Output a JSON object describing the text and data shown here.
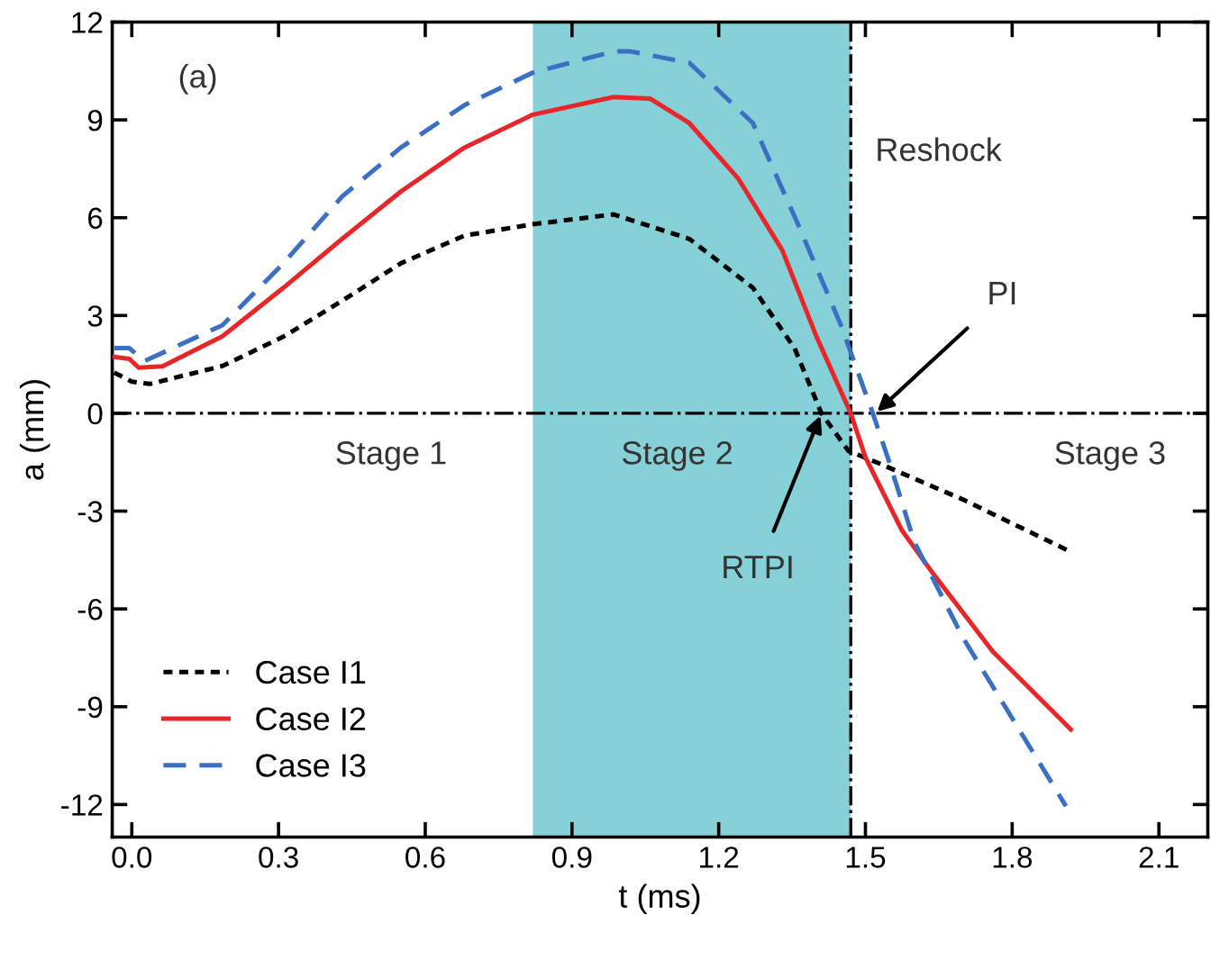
{
  "chart_data": {
    "type": "line",
    "xlabel": "t (ms)",
    "ylabel": "a (mm)",
    "xlim": [
      -0.04,
      2.2
    ],
    "xticks": [
      {
        "value": 0,
        "label": "0.0"
      },
      0.3,
      0.6,
      0.9,
      1.2,
      1.5,
      1.8,
      2.1
    ],
    "ylim": [
      -13,
      12
    ],
    "yticks": [
      -12,
      -9,
      -6,
      -3,
      0,
      3,
      6,
      9,
      12
    ],
    "grid": false,
    "legend": "bottom left",
    "series": [
      {
        "name": "Case I1",
        "color": "#000000",
        "line_style": "dotted",
        "x": [
          -0.036,
          0,
          0.037,
          0.185,
          0.31,
          0.43,
          0.55,
          0.68,
          0.82,
          0.985,
          1.14,
          1.27,
          1.355,
          1.41,
          1.465,
          1.53,
          1.7,
          1.92
        ],
        "values": [
          1.25,
          0.97,
          0.9,
          1.45,
          2.35,
          3.45,
          4.6,
          5.45,
          5.8,
          6.1,
          5.35,
          3.85,
          2.0,
          0,
          -1.15,
          -1.55,
          -2.65,
          -4.25
        ]
      },
      {
        "name": "Case I2",
        "color": "#e8262a",
        "line_style": "solid",
        "x": [
          -0.036,
          -0.005,
          0.014,
          0.063,
          0.185,
          0.31,
          0.43,
          0.55,
          0.68,
          0.82,
          0.985,
          1.06,
          1.14,
          1.24,
          1.33,
          1.4,
          1.47,
          1.5,
          1.575,
          1.64,
          1.76,
          1.92
        ],
        "values": [
          1.73,
          1.67,
          1.4,
          1.44,
          2.36,
          3.85,
          5.35,
          6.8,
          8.15,
          9.16,
          9.7,
          9.65,
          8.9,
          7.2,
          5.0,
          2.35,
          0,
          -1.35,
          -3.6,
          -4.95,
          -7.3,
          -9.7
        ]
      },
      {
        "name": "Case I3",
        "color": "#3a6fc4",
        "line_style": "dashed",
        "x": [
          -0.036,
          -0.005,
          0.026,
          0.185,
          0.31,
          0.43,
          0.55,
          0.68,
          0.82,
          0.985,
          1.02,
          1.14,
          1.27,
          1.365,
          1.45,
          1.515,
          1.55,
          1.6,
          1.7,
          1.91
        ],
        "values": [
          2.0,
          2.0,
          1.6,
          2.7,
          4.6,
          6.65,
          8.15,
          9.45,
          10.45,
          11.1,
          11.1,
          10.75,
          8.9,
          5.7,
          2.7,
          0,
          -1.55,
          -3.95,
          -6.9,
          -12.05
        ]
      }
    ],
    "bands": [
      {
        "axis": "x",
        "from": 0.82,
        "to": 1.47,
        "label": "Stage 2",
        "color": "#86d0d8"
      }
    ],
    "ref_lines": [
      {
        "axis": "y",
        "value": 0,
        "line_style": "dashdot",
        "color": "#000000"
      },
      {
        "axis": "x",
        "value": 1.47,
        "label": "Reshock",
        "line_style": "dashdot",
        "color": "#000000"
      }
    ],
    "annotations": [
      "(a)",
      "Stage 1",
      "Stage 3",
      {
        "text": "PI",
        "x": 1.52,
        "y": 0
      },
      {
        "text": "RTPI",
        "x": 1.41,
        "y": 0
      }
    ]
  }
}
